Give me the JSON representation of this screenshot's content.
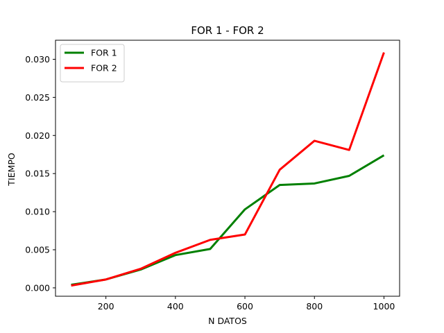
{
  "chart_data": {
    "type": "line",
    "title": "FOR 1 - FOR 2",
    "xlabel": "N DATOS",
    "ylabel": "TIEMPO",
    "x": [
      100,
      200,
      300,
      400,
      500,
      600,
      700,
      800,
      900,
      1000
    ],
    "series": [
      {
        "name": "FOR 1",
        "color": "#008000",
        "values": [
          0.0004,
          0.0011,
          0.0024,
          0.0043,
          0.0051,
          0.0103,
          0.0135,
          0.0137,
          0.0147,
          0.0174
        ]
      },
      {
        "name": "FOR 2",
        "color": "#ff0000",
        "values": [
          0.0003,
          0.0011,
          0.0025,
          0.0046,
          0.0063,
          0.007,
          0.0155,
          0.0193,
          0.0181,
          0.0309
        ]
      }
    ],
    "xlim": [
      55,
      1045
    ],
    "ylim": [
      -0.0011,
      0.0325
    ],
    "xticks": [
      200,
      400,
      600,
      800,
      1000
    ],
    "xtick_labels": [
      "200",
      "400",
      "600",
      "800",
      "1000"
    ],
    "yticks": [
      0.0,
      0.005,
      0.01,
      0.015,
      0.02,
      0.025,
      0.03
    ],
    "ytick_labels": [
      "0.000",
      "0.005",
      "0.010",
      "0.015",
      "0.020",
      "0.025",
      "0.030"
    ],
    "grid": false,
    "legend_position": "top-left"
  }
}
